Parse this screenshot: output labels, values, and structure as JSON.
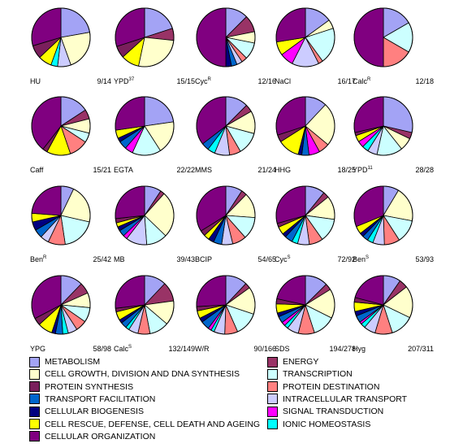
{
  "categories": [
    {
      "key": "metabolism",
      "label": "METABOLISM",
      "color": "#a3a3f5"
    },
    {
      "key": "energy",
      "label": "ENERGY",
      "color": "#993366"
    },
    {
      "key": "growth",
      "label": "CELL GROWTH, DIVISION AND DNA SYNTHESIS",
      "color": "#ffffcc"
    },
    {
      "key": "transcription",
      "label": "TRANSCRIPTION",
      "color": "#ccffff"
    },
    {
      "key": "protein_synthesis",
      "label": "PROTEIN SYNTHESIS",
      "color": "#7a1f5c"
    },
    {
      "key": "protein_destination",
      "label": "PROTEIN DESTINATION",
      "color": "#ff8080"
    },
    {
      "key": "transport_facilitation",
      "label": "TRANSPORT FACILITATION",
      "color": "#0066cc"
    },
    {
      "key": "intracellular_transport",
      "label": "INTRACELLULAR TRANSPORT",
      "color": "#ccccff"
    },
    {
      "key": "cellular_biogenesis",
      "label": "CELLULAR BIOGENESIS",
      "color": "#000080"
    },
    {
      "key": "signal_transduction",
      "label": "SIGNAL TRANSDUCTION",
      "color": "#ff00ff"
    },
    {
      "key": "cell_rescue",
      "label": "CELL RESCUE, DEFENSE, CELL DEATH AND AGEING",
      "color": "#ffff00"
    },
    {
      "key": "ionic_homeostasis",
      "label": "IONIC HOMEOSTASIS",
      "color": "#00ffff"
    },
    {
      "key": "cellular_organization",
      "label": "CELLULAR ORGANIZATION",
      "color": "#800080"
    }
  ],
  "chart_data": {
    "type": "pie",
    "order": [
      "metabolism",
      "energy",
      "growth",
      "transcription",
      "protein_destination",
      "intracellular_transport",
      "ionic_homeostasis",
      "signal_transduction",
      "transport_facilitation",
      "cellular_biogenesis",
      "cell_rescue",
      "protein_synthesis",
      "cellular_organization"
    ],
    "pies": [
      {
        "name": "HU",
        "sup": "",
        "count": "9/14",
        "values": {
          "metabolism": 3,
          "growth": 3,
          "intracellular_transport": 1,
          "ionic_homeostasis": 0.5,
          "cell_rescue": 1,
          "protein_synthesis": 1,
          "cellular_organization": 4
        }
      },
      {
        "name": "YPD",
        "sup": "37",
        "count": "15/15",
        "values": {
          "metabolism": 3,
          "energy": 1,
          "growth": 4,
          "cell_rescue": 1.5,
          "protein_synthesis": 1,
          "cellular_organization": 4.5
        }
      },
      {
        "name": "Cyc",
        "sup": "R",
        "count": "12/16",
        "values": {
          "metabolism": 2,
          "energy": 1.5,
          "transcription": 1.5,
          "growth": 1,
          "protein_destination": 0.5,
          "intracellular_transport": 0.5,
          "transport_facilitation": 0.5,
          "cellular_biogenesis": 0.5,
          "cellular_organization": 8
        }
      },
      {
        "name": "NaCl",
        "sup": "",
        "count": "16/17",
        "values": {
          "metabolism": 3,
          "transcription": 4,
          "growth": 1,
          "protein_destination": 0.5,
          "intracellular_transport": 3,
          "signal_transduction": 1.5,
          "cell_rescue": 1.5,
          "cellular_organization": 5.5
        }
      },
      {
        "name": "Calc",
        "sup": "R",
        "count": "12/18",
        "values": {
          "metabolism": 2,
          "transcription": 2,
          "protein_destination": 2,
          "cellular_organization": 6
        }
      },
      {
        "name": "Caff",
        "sup": "",
        "count": "15/21",
        "values": {
          "metabolism": 3,
          "energy": 1,
          "growth": 1.5,
          "transcription": 1,
          "protein_destination": 2,
          "cell_rescue": 2.5,
          "protein_synthesis": 0.5,
          "cellular_organization": 7.5
        }
      },
      {
        "name": "EGTA",
        "sup": "",
        "count": "22/22",
        "values": {
          "metabolism": 5,
          "growth": 4,
          "transcription": 3.5,
          "transport_facilitation": 1,
          "cellular_biogenesis": 0.5,
          "cell_rescue": 1,
          "signal_transduction": 1,
          "cellular_organization": 6
        }
      },
      {
        "name": "MMS",
        "sup": "",
        "count": "21/24",
        "values": {
          "metabolism": 3,
          "energy": 1,
          "growth": 3,
          "transcription": 3,
          "protein_destination": 1.5,
          "transport_facilitation": 1,
          "intracellular_transport": 2,
          "ionic_homeostasis": 1,
          "cellular_organization": 8.5
        }
      },
      {
        "name": "HHG",
        "sup": "",
        "count": "18/25",
        "values": {
          "metabolism": 3,
          "growth": 6,
          "protein_destination": 1.5,
          "transport_facilitation": 1,
          "signal_transduction": 1.5,
          "cellular_biogenesis": 0.5,
          "cell_rescue": 3,
          "protein_synthesis": 1,
          "cellular_organization": 7.5
        }
      },
      {
        "name": "YPD",
        "sup": "11",
        "count": "28/28",
        "values": {
          "metabolism": 8,
          "energy": 1,
          "growth": 2,
          "transcription": 4,
          "intracellular_transport": 1.5,
          "ionic_homeostasis": 1,
          "signal_transduction": 1,
          "cell_rescue": 1,
          "protein_synthesis": 0.5,
          "cellular_organization": 8
        }
      },
      {
        "name": "Ben",
        "sup": "R",
        "count": "25/42",
        "values": {
          "metabolism": 3,
          "growth": 9,
          "transcription": 8,
          "protein_destination": 4,
          "intracellular_transport": 2,
          "transport_facilitation": 2,
          "cellular_biogenesis": 2,
          "cell_rescue": 2,
          "cellular_organization": 10
        }
      },
      {
        "name": "MB",
        "sup": "",
        "count": "39/43",
        "values": {
          "metabolism": 4,
          "energy": 1,
          "growth": 11,
          "transcription": 5,
          "intracellular_transport": 5,
          "transport_facilitation": 1.5,
          "cellular_biogenesis": 1,
          "cell_rescue": 1,
          "signal_transduction": 1,
          "protein_synthesis": 1,
          "cellular_organization": 11.5
        }
      },
      {
        "name": "BCIP",
        "sup": "",
        "count": "54/65",
        "values": {
          "metabolism": 6,
          "energy": 2,
          "growth": 9,
          "transcription": 8,
          "protein_destination": 5,
          "intracellular_transport": 4,
          "transport_facilitation": 3,
          "cellular_biogenesis": 2,
          "cell_rescue": 2,
          "protein_synthesis": 2,
          "cellular_organization": 22
        }
      },
      {
        "name": "Cyc",
        "sup": "S",
        "count": "72/92",
        "values": {
          "metabolism": 10,
          "energy": 3,
          "growth": 12,
          "transcription": 12,
          "protein_destination": 7,
          "intracellular_transport": 6,
          "ionic_homeostasis": 3,
          "transport_facilitation": 4,
          "cellular_biogenesis": 2,
          "cell_rescue": 4,
          "protein_synthesis": 2,
          "cellular_organization": 27
        }
      },
      {
        "name": "Ben",
        "sup": "S",
        "count": "53/93",
        "values": {
          "metabolism": 8,
          "growth": 18,
          "transcription": 12,
          "protein_destination": 8,
          "intracellular_transport": 6,
          "ionic_homeostasis": 3,
          "transport_facilitation": 3,
          "cellular_biogenesis": 2,
          "cell_rescue": 4,
          "cellular_organization": 29
        }
      },
      {
        "name": "YPG",
        "sup": "",
        "count": "58/98",
        "values": {
          "metabolism": 12,
          "energy": 6,
          "growth": 8,
          "transcription": 8,
          "protein_destination": 6,
          "intracellular_transport": 5,
          "ionic_homeostasis": 3,
          "transport_facilitation": 4,
          "cellular_biogenesis": 2,
          "cell_rescue": 8,
          "protein_synthesis": 4,
          "cellular_organization": 32
        }
      },
      {
        "name": "Calc",
        "sup": "S",
        "count": "132/149",
        "values": {
          "metabolism": 18,
          "energy": 16,
          "growth": 20,
          "transcription": 16,
          "protein_destination": 10,
          "intracellular_transport": 8,
          "ionic_homeostasis": 3,
          "transport_facilitation": 5,
          "cellular_biogenesis": 3,
          "cell_rescue": 7,
          "protein_synthesis": 3,
          "cellular_organization": 40
        }
      },
      {
        "name": "W/R",
        "sup": "",
        "count": "90/166",
        "values": {
          "metabolism": 20,
          "energy": 5,
          "growth": 25,
          "transcription": 22,
          "protein_destination": 12,
          "intracellular_transport": 10,
          "ionic_homeostasis": 3,
          "transport_facilitation": 8,
          "cellular_biogenesis": 4,
          "cell_rescue": 7,
          "signal_transduction": 3,
          "protein_synthesis": 4,
          "cellular_organization": 43
        }
      },
      {
        "name": "SDS",
        "sup": "",
        "count": "194/278",
        "values": {
          "metabolism": 35,
          "energy": 10,
          "growth": 45,
          "transcription": 35,
          "protein_destination": 25,
          "intracellular_transport": 18,
          "ionic_homeostasis": 6,
          "transport_facilitation": 10,
          "cellular_biogenesis": 6,
          "cell_rescue": 14,
          "signal_transduction": 6,
          "protein_synthesis": 8,
          "cellular_organization": 60
        }
      },
      {
        "name": "Hyg",
        "sup": "",
        "count": "207/311",
        "values": {
          "metabolism": 30,
          "energy": 15,
          "growth": 55,
          "transcription": 40,
          "protein_destination": 30,
          "intracellular_transport": 20,
          "ionic_homeostasis": 8,
          "transport_facilitation": 12,
          "cellular_biogenesis": 8,
          "cell_rescue": 16,
          "signal_transduction": 4,
          "protein_synthesis": 8,
          "cellular_organization": 65
        }
      }
    ]
  },
  "legend_layout": {
    "left_column": [
      "metabolism",
      "growth",
      "protein_synthesis",
      "transport_facilitation",
      "cellular_biogenesis",
      "cell_rescue",
      "cellular_organization"
    ],
    "right_column": [
      "energy",
      "transcription",
      "protein_destination",
      "intracellular_transport",
      "signal_transduction",
      "ionic_homeostasis"
    ]
  }
}
